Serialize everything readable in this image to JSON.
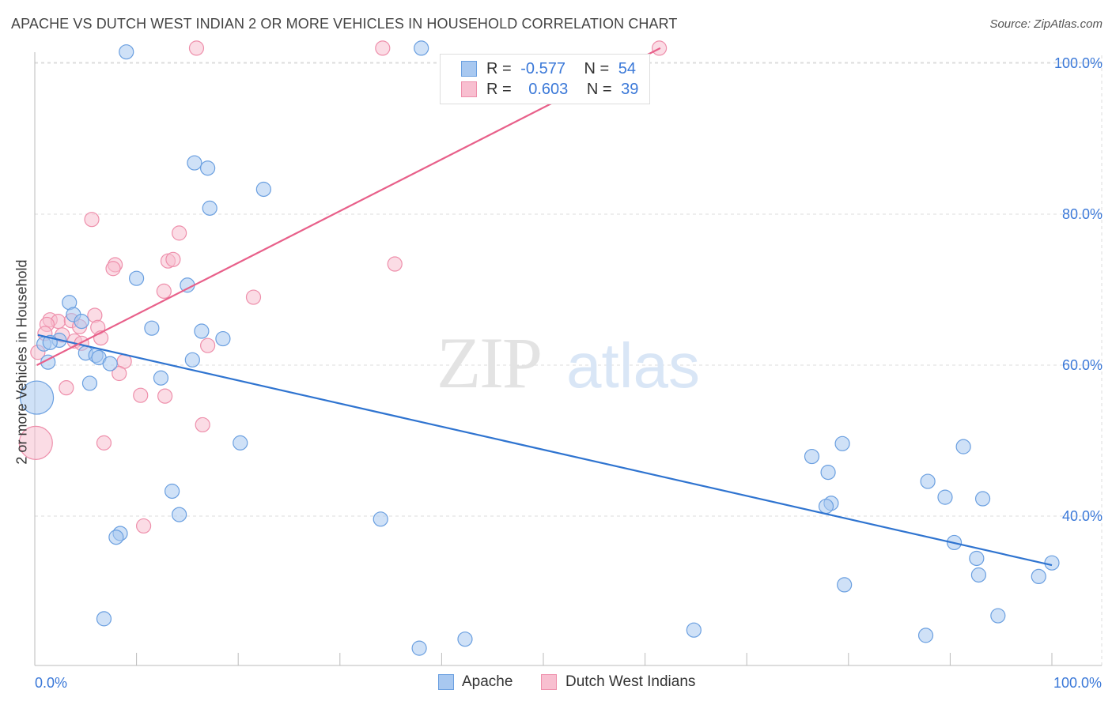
{
  "header": {
    "title": "APACHE VS DUTCH WEST INDIAN 2 OR MORE VEHICLES IN HOUSEHOLD CORRELATION CHART",
    "source": "Source: ZipAtlas.com"
  },
  "watermark": {
    "zip": "ZIP",
    "atlas": "atlas"
  },
  "colors": {
    "apache_fill": "#a8c8f0",
    "apache_stroke": "#6a9fe0",
    "apache_line": "#2f74d0",
    "dutch_fill": "#f8bfd0",
    "dutch_stroke": "#ee8fab",
    "dutch_line": "#e8608a",
    "tick_label": "#3a78d8",
    "grid": "#dddddd"
  },
  "legend": {
    "rows": [
      {
        "r_label": "R =",
        "r_value": "-0.577",
        "n_label": "N =",
        "n_value": "54"
      },
      {
        "r_label": "R =",
        "r_value": "0.603",
        "n_label": "N =",
        "n_value": "39"
      }
    ]
  },
  "chart_data": {
    "type": "scatter",
    "title": "APACHE VS DUTCH WEST INDIAN 2 OR MORE VEHICLES IN HOUSEHOLD CORRELATION CHART",
    "xlabel": "",
    "ylabel": "2 or more Vehicles in Household",
    "xlim": [
      0,
      100
    ],
    "ylim": [
      20,
      102
    ],
    "x_tick_labels": [
      "0.0%",
      "100.0%"
    ],
    "y_ticks": [
      {
        "value": 100,
        "label": "100.0%"
      },
      {
        "value": 80,
        "label": "80.0%"
      },
      {
        "value": 60,
        "label": "60.0%"
      },
      {
        "value": 40,
        "label": "40.0%"
      }
    ],
    "grid": true,
    "legend_position": "bottom",
    "series": [
      {
        "name": "Apache",
        "r": -0.577,
        "n": 54,
        "trend": {
          "x0": 0.3,
          "y0": 64.0,
          "x1": 100,
          "y1": 33.5
        },
        "points": [
          {
            "x": 9,
            "y": 101.5
          },
          {
            "x": 38,
            "y": 102.0
          },
          {
            "x": 15.7,
            "y": 86.8
          },
          {
            "x": 17,
            "y": 86.1
          },
          {
            "x": 22.5,
            "y": 83.3
          },
          {
            "x": 17.2,
            "y": 80.8
          },
          {
            "x": 10,
            "y": 71.5
          },
          {
            "x": 15,
            "y": 70.6
          },
          {
            "x": 3.4,
            "y": 68.3
          },
          {
            "x": 3.8,
            "y": 66.7
          },
          {
            "x": 4.6,
            "y": 65.8
          },
          {
            "x": 11.5,
            "y": 64.9
          },
          {
            "x": 16.4,
            "y": 64.5
          },
          {
            "x": 18.5,
            "y": 63.5
          },
          {
            "x": 2.4,
            "y": 63.3
          },
          {
            "x": 0.9,
            "y": 62.8
          },
          {
            "x": 1.5,
            "y": 63.0
          },
          {
            "x": 5,
            "y": 61.6
          },
          {
            "x": 6,
            "y": 61.3
          },
          {
            "x": 6.3,
            "y": 61.0
          },
          {
            "x": 15.5,
            "y": 60.7
          },
          {
            "x": 7.4,
            "y": 60.2
          },
          {
            "x": 1.3,
            "y": 60.4
          },
          {
            "x": 12.4,
            "y": 58.3
          },
          {
            "x": 5.4,
            "y": 57.6
          },
          {
            "x": 0.2,
            "y": 55.7,
            "big": true
          },
          {
            "x": 20.2,
            "y": 49.7
          },
          {
            "x": 13.5,
            "y": 43.3
          },
          {
            "x": 14.2,
            "y": 40.2
          },
          {
            "x": 8.4,
            "y": 37.7
          },
          {
            "x": 8,
            "y": 37.2
          },
          {
            "x": 34,
            "y": 39.6
          },
          {
            "x": 6.8,
            "y": 26.4
          },
          {
            "x": 37.8,
            "y": 22.5
          },
          {
            "x": 42.3,
            "y": 23.7
          },
          {
            "x": 64.8,
            "y": 24.9
          },
          {
            "x": 76.4,
            "y": 47.9
          },
          {
            "x": 79.4,
            "y": 49.6
          },
          {
            "x": 91.3,
            "y": 49.2
          },
          {
            "x": 78,
            "y": 45.8
          },
          {
            "x": 87.8,
            "y": 44.6
          },
          {
            "x": 89.5,
            "y": 42.5
          },
          {
            "x": 93.2,
            "y": 42.3
          },
          {
            "x": 78.3,
            "y": 41.7
          },
          {
            "x": 77.8,
            "y": 41.3
          },
          {
            "x": 90.4,
            "y": 36.5
          },
          {
            "x": 92.6,
            "y": 34.4
          },
          {
            "x": 100,
            "y": 33.8
          },
          {
            "x": 92.8,
            "y": 32.2
          },
          {
            "x": 98.7,
            "y": 32.0
          },
          {
            "x": 79.6,
            "y": 30.9
          },
          {
            "x": 94.7,
            "y": 26.8
          },
          {
            "x": 87.6,
            "y": 24.2
          }
        ]
      },
      {
        "name": "Dutch West Indians",
        "r": 0.603,
        "n": 39,
        "trend": {
          "x0": 0.2,
          "y0": 60.0,
          "x1": 61.5,
          "y1": 102.0
        },
        "points": [
          {
            "x": 15.9,
            "y": 102.0
          },
          {
            "x": 34.2,
            "y": 102.0
          },
          {
            "x": 61.4,
            "y": 102.0
          },
          {
            "x": 5.6,
            "y": 79.3
          },
          {
            "x": 14.2,
            "y": 77.5
          },
          {
            "x": 13.1,
            "y": 73.8
          },
          {
            "x": 13.6,
            "y": 74.0
          },
          {
            "x": 7.9,
            "y": 73.3
          },
          {
            "x": 7.7,
            "y": 72.8
          },
          {
            "x": 35.4,
            "y": 73.4
          },
          {
            "x": 12.7,
            "y": 69.8
          },
          {
            "x": 21.5,
            "y": 69.0
          },
          {
            "x": 5.9,
            "y": 66.6
          },
          {
            "x": 1.5,
            "y": 66.0
          },
          {
            "x": 2.3,
            "y": 65.8
          },
          {
            "x": 3.6,
            "y": 65.9
          },
          {
            "x": 1.2,
            "y": 65.4
          },
          {
            "x": 6.2,
            "y": 65.0
          },
          {
            "x": 4.4,
            "y": 65.1
          },
          {
            "x": 1.0,
            "y": 64.2
          },
          {
            "x": 2.7,
            "y": 64.0
          },
          {
            "x": 6.5,
            "y": 63.6
          },
          {
            "x": 3.9,
            "y": 63.2
          },
          {
            "x": 4.6,
            "y": 62.9
          },
          {
            "x": 17.0,
            "y": 62.6
          },
          {
            "x": 8.8,
            "y": 60.5
          },
          {
            "x": 0.3,
            "y": 61.7
          },
          {
            "x": 8.3,
            "y": 58.9
          },
          {
            "x": 3.1,
            "y": 57.0
          },
          {
            "x": 10.4,
            "y": 56.0
          },
          {
            "x": 12.8,
            "y": 55.9
          },
          {
            "x": 16.5,
            "y": 52.1
          },
          {
            "x": 0.1,
            "y": 49.7,
            "big": true
          },
          {
            "x": 6.8,
            "y": 49.7
          },
          {
            "x": 10.7,
            "y": 38.7
          }
        ]
      }
    ]
  }
}
